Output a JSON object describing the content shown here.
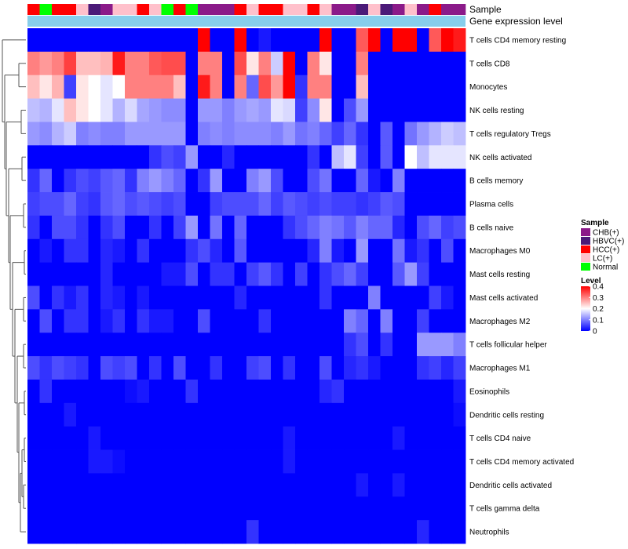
{
  "chart_data": {
    "type": "heatmap",
    "title": "",
    "annotation_tracks": [
      "Sample",
      "Gene expression level"
    ],
    "sample_groups": {
      "CHB(+)": "#8b1a89",
      "HBVC(+)": "#4b1a78",
      "HCC(+)": "#ff0000",
      "LC(+)": "#ffc0cb",
      "Normal": "#00ff00"
    },
    "sample_annotation": [
      "HCC(+)",
      "Normal",
      "HCC(+)",
      "HCC(+)",
      "LC(+)",
      "HBVC(+)",
      "CHB(+)",
      "LC(+)",
      "LC(+)",
      "HCC(+)",
      "LC(+)",
      "Normal",
      "HCC(+)",
      "Normal",
      "CHB(+)",
      "CHB(+)",
      "CHB(+)",
      "HCC(+)",
      "LC(+)",
      "HCC(+)",
      "HCC(+)",
      "LC(+)",
      "LC(+)",
      "HCC(+)",
      "LC(+)",
      "CHB(+)",
      "CHB(+)",
      "HBVC(+)",
      "LC(+)",
      "HBVC(+)",
      "CHB(+)",
      "LC(+)",
      "CHB(+)",
      "HCC(+)",
      "CHB(+)",
      "CHB(+)"
    ],
    "expression_track_color": "#87ceeb",
    "rows": [
      "T cells CD4 memory resting",
      "T cells CD8",
      "Monocytes",
      "NK cells resting",
      "T cells regulatory  Tregs",
      "NK cells activated",
      "B cells memory",
      "Plasma cells",
      "B cells naive",
      "Macrophages M0",
      "Mast cells resting",
      "Mast cells activated",
      "Macrophages M2",
      "T cells follicular helper",
      "Macrophages M1",
      "Eosinophils",
      "Dendritic cells resting",
      "T cells CD4 naive",
      "T cells CD4 memory activated",
      "Dendritic cells activated",
      "T cells gamma delta",
      "Neutrophils"
    ],
    "values": [
      [
        0.0,
        0.0,
        0.0,
        0.0,
        0.0,
        0.0,
        0.0,
        0.0,
        0.0,
        0.0,
        0.0,
        0.0,
        0.0,
        0.0,
        0.4,
        0.0,
        0.0,
        0.4,
        0.0,
        0.02,
        0.0,
        0.0,
        0.0,
        0.0,
        0.4,
        0.0,
        0.0,
        0.33,
        0.4,
        0.0,
        0.4,
        0.4,
        0.0,
        0.33,
        0.4,
        0.38
      ],
      [
        0.3,
        0.28,
        0.3,
        0.35,
        0.25,
        0.25,
        0.26,
        0.38,
        0.3,
        0.3,
        0.33,
        0.34,
        0.34,
        0.0,
        0.3,
        0.3,
        0.0,
        0.34,
        0.22,
        0.3,
        0.16,
        0.4,
        0.0,
        0.3,
        0.22,
        0.0,
        0.0,
        0.3,
        0.0,
        0.0,
        0.0,
        0.0,
        0.0,
        0.0,
        0.0,
        0.0
      ],
      [
        0.25,
        0.22,
        0.26,
        0.05,
        0.22,
        0.2,
        0.18,
        0.2,
        0.3,
        0.3,
        0.3,
        0.3,
        0.25,
        0.0,
        0.38,
        0.3,
        0.0,
        0.3,
        0.08,
        0.34,
        0.28,
        0.4,
        0.04,
        0.3,
        0.3,
        0.0,
        0.0,
        0.25,
        0.0,
        0.0,
        0.0,
        0.0,
        0.0,
        0.0,
        0.0,
        0.0
      ],
      [
        0.15,
        0.14,
        0.18,
        0.25,
        0.22,
        0.2,
        0.18,
        0.14,
        0.17,
        0.13,
        0.12,
        0.11,
        0.11,
        0.0,
        0.12,
        0.12,
        0.1,
        0.12,
        0.13,
        0.12,
        0.18,
        0.17,
        0.05,
        0.11,
        0.22,
        0.0,
        0.06,
        0.12,
        0.0,
        0.0,
        0.0,
        0.0,
        0.0,
        0.0,
        0.0,
        0.0
      ],
      [
        0.12,
        0.11,
        0.14,
        0.16,
        0.1,
        0.11,
        0.1,
        0.1,
        0.12,
        0.12,
        0.12,
        0.12,
        0.12,
        0.0,
        0.1,
        0.11,
        0.1,
        0.11,
        0.11,
        0.11,
        0.1,
        0.12,
        0.09,
        0.1,
        0.08,
        0.05,
        0.08,
        0.04,
        0.0,
        0.07,
        0.0,
        0.09,
        0.12,
        0.14,
        0.16,
        0.15
      ],
      [
        0.0,
        0.0,
        0.0,
        0.0,
        0.0,
        0.0,
        0.0,
        0.0,
        0.0,
        0.0,
        0.04,
        0.06,
        0.05,
        0.12,
        0.0,
        0.0,
        0.03,
        0.0,
        0.0,
        0.0,
        0.0,
        0.0,
        0.0,
        0.04,
        0.0,
        0.15,
        0.18,
        0.05,
        0.0,
        0.07,
        0.0,
        0.2,
        0.15,
        0.18,
        0.18,
        0.18
      ],
      [
        0.04,
        0.08,
        0.0,
        0.04,
        0.06,
        0.05,
        0.07,
        0.08,
        0.04,
        0.1,
        0.12,
        0.1,
        0.08,
        0.0,
        0.04,
        0.12,
        0.0,
        0.0,
        0.1,
        0.12,
        0.06,
        0.0,
        0.0,
        0.06,
        0.09,
        0.0,
        0.0,
        0.08,
        0.02,
        0.0,
        0.1,
        0.0,
        0.0,
        0.0,
        0.0,
        0.0
      ],
      [
        0.05,
        0.06,
        0.06,
        0.08,
        0.05,
        0.04,
        0.07,
        0.08,
        0.06,
        0.07,
        0.06,
        0.05,
        0.06,
        0.0,
        0.0,
        0.05,
        0.06,
        0.06,
        0.06,
        0.08,
        0.05,
        0.07,
        0.06,
        0.05,
        0.06,
        0.05,
        0.05,
        0.04,
        0.05,
        0.07,
        0.06,
        0.0,
        0.0,
        0.0,
        0.0,
        0.0
      ],
      [
        0.04,
        0.0,
        0.06,
        0.06,
        0.04,
        0.0,
        0.04,
        0.06,
        0.0,
        0.0,
        0.04,
        0.0,
        0.05,
        0.12,
        0.0,
        0.09,
        0.0,
        0.08,
        0.0,
        0.0,
        0.0,
        0.04,
        0.06,
        0.08,
        0.1,
        0.09,
        0.07,
        0.1,
        0.08,
        0.08,
        0.03,
        0.0,
        0.06,
        0.08,
        0.05,
        0.06
      ],
      [
        0.0,
        0.02,
        0.0,
        0.04,
        0.04,
        0.0,
        0.03,
        0.02,
        0.0,
        0.04,
        0.0,
        0.0,
        0.0,
        0.04,
        0.06,
        0.03,
        0.0,
        0.07,
        0.0,
        0.0,
        0.0,
        0.0,
        0.0,
        0.03,
        0.1,
        0.02,
        0.0,
        0.12,
        0.0,
        0.0,
        0.09,
        0.02,
        0.04,
        0.0,
        0.06,
        0.0
      ],
      [
        0.0,
        0.0,
        0.0,
        0.0,
        0.0,
        0.0,
        0.03,
        0.0,
        0.0,
        0.0,
        0.0,
        0.02,
        0.02,
        0.06,
        0.0,
        0.04,
        0.04,
        0.0,
        0.05,
        0.07,
        0.04,
        0.0,
        0.05,
        0.0,
        0.04,
        0.06,
        0.08,
        0.05,
        0.0,
        0.0,
        0.07,
        0.12,
        0.05,
        0.0,
        0.0,
        0.0
      ],
      [
        0.06,
        0.0,
        0.04,
        0.02,
        0.04,
        0.0,
        0.03,
        0.02,
        0.0,
        0.02,
        0.0,
        0.0,
        0.0,
        0.0,
        0.0,
        0.0,
        0.0,
        0.03,
        0.0,
        0.0,
        0.0,
        0.0,
        0.0,
        0.0,
        0.04,
        0.0,
        0.0,
        0.0,
        0.1,
        0.0,
        0.0,
        0.0,
        0.0,
        0.05,
        0.02,
        0.0
      ],
      [
        0.0,
        0.06,
        0.0,
        0.04,
        0.04,
        0.0,
        0.02,
        0.04,
        0.0,
        0.04,
        0.02,
        0.02,
        0.0,
        0.0,
        0.06,
        0.0,
        0.0,
        0.0,
        0.0,
        0.04,
        0.0,
        0.0,
        0.0,
        0.0,
        0.0,
        0.0,
        0.1,
        0.08,
        0.0,
        0.1,
        0.0,
        0.0,
        0.05,
        0.0,
        0.0,
        0.0
      ],
      [
        0.0,
        0.0,
        0.0,
        0.0,
        0.0,
        0.0,
        0.0,
        0.0,
        0.0,
        0.0,
        0.0,
        0.0,
        0.0,
        0.0,
        0.0,
        0.0,
        0.0,
        0.0,
        0.0,
        0.0,
        0.0,
        0.0,
        0.0,
        0.0,
        0.0,
        0.0,
        0.04,
        0.06,
        0.0,
        0.04,
        0.0,
        0.0,
        0.12,
        0.12,
        0.12,
        0.1
      ],
      [
        0.06,
        0.04,
        0.06,
        0.05,
        0.04,
        0.0,
        0.06,
        0.05,
        0.06,
        0.0,
        0.04,
        0.0,
        0.06,
        0.0,
        0.0,
        0.04,
        0.0,
        0.0,
        0.05,
        0.06,
        0.0,
        0.04,
        0.0,
        0.0,
        0.06,
        0.0,
        0.03,
        0.04,
        0.02,
        0.0,
        0.0,
        0.0,
        0.04,
        0.05,
        0.03,
        0.05
      ],
      [
        0.0,
        0.04,
        0.0,
        0.0,
        0.0,
        0.0,
        0.0,
        0.0,
        0.01,
        0.02,
        0.0,
        0.0,
        0.0,
        0.04,
        0.0,
        0.0,
        0.0,
        0.0,
        0.0,
        0.0,
        0.0,
        0.0,
        0.0,
        0.0,
        0.03,
        0.04,
        0.0,
        0.0,
        0.0,
        0.0,
        0.0,
        0.0,
        0.0,
        0.0,
        0.0,
        0.02
      ],
      [
        0.0,
        0.0,
        0.0,
        0.02,
        0.0,
        0.0,
        0.0,
        0.0,
        0.0,
        0.0,
        0.0,
        0.0,
        0.0,
        0.0,
        0.0,
        0.0,
        0.0,
        0.0,
        0.0,
        0.0,
        0.0,
        0.0,
        0.0,
        0.0,
        0.0,
        0.0,
        0.0,
        0.0,
        0.0,
        0.0,
        0.0,
        0.0,
        0.0,
        0.0,
        0.0,
        0.01
      ],
      [
        0.0,
        0.0,
        0.0,
        0.0,
        0.0,
        0.02,
        0.0,
        0.0,
        0.0,
        0.0,
        0.0,
        0.0,
        0.0,
        0.0,
        0.0,
        0.0,
        0.0,
        0.0,
        0.0,
        0.0,
        0.0,
        0.02,
        0.0,
        0.0,
        0.0,
        0.0,
        0.0,
        0.0,
        0.0,
        0.0,
        0.02,
        0.0,
        0.0,
        0.0,
        0.0,
        0.0
      ],
      [
        0.0,
        0.0,
        0.0,
        0.0,
        0.0,
        0.02,
        0.02,
        0.01,
        0.0,
        0.0,
        0.0,
        0.0,
        0.0,
        0.0,
        0.0,
        0.0,
        0.0,
        0.0,
        0.0,
        0.0,
        0.0,
        0.02,
        0.0,
        0.0,
        0.0,
        0.0,
        0.0,
        0.0,
        0.0,
        0.0,
        0.0,
        0.0,
        0.0,
        0.0,
        0.0,
        0.0
      ],
      [
        0.0,
        0.0,
        0.0,
        0.0,
        0.0,
        0.0,
        0.0,
        0.0,
        0.0,
        0.0,
        0.0,
        0.0,
        0.0,
        0.0,
        0.0,
        0.0,
        0.0,
        0.0,
        0.0,
        0.0,
        0.0,
        0.0,
        0.0,
        0.0,
        0.0,
        0.0,
        0.0,
        0.02,
        0.0,
        0.0,
        0.02,
        0.0,
        0.0,
        0.0,
        0.0,
        0.0
      ],
      [
        0.0,
        0.0,
        0.0,
        0.0,
        0.0,
        0.0,
        0.0,
        0.0,
        0.0,
        0.0,
        0.0,
        0.0,
        0.0,
        0.0,
        0.0,
        0.0,
        0.0,
        0.0,
        0.0,
        0.0,
        0.0,
        0.0,
        0.0,
        0.0,
        0.0,
        0.0,
        0.0,
        0.0,
        0.0,
        0.0,
        0.0,
        0.0,
        0.0,
        0.0,
        0.0,
        0.0
      ],
      [
        0.0,
        0.0,
        0.0,
        0.0,
        0.0,
        0.0,
        0.0,
        0.0,
        0.0,
        0.0,
        0.0,
        0.0,
        0.0,
        0.0,
        0.0,
        0.0,
        0.0,
        0.0,
        0.04,
        0.0,
        0.0,
        0.0,
        0.0,
        0.0,
        0.0,
        0.0,
        0.0,
        0.0,
        0.0,
        0.0,
        0.0,
        0.0,
        0.03,
        0.0,
        0.0,
        0.0
      ]
    ],
    "color_scale": {
      "min": 0,
      "max": 0.4,
      "low": "#0000ff",
      "mid": "#ffffff",
      "high": "#ff0000",
      "ticks": [
        0.4,
        0.3,
        0.2,
        0.1,
        0
      ]
    },
    "legend": {
      "sample_title": "Sample",
      "sample_entries": [
        "CHB(+)",
        "HBVC(+)",
        "HCC(+)",
        "LC(+)",
        "Normal"
      ],
      "level_title": "Level",
      "placement": "right"
    }
  }
}
